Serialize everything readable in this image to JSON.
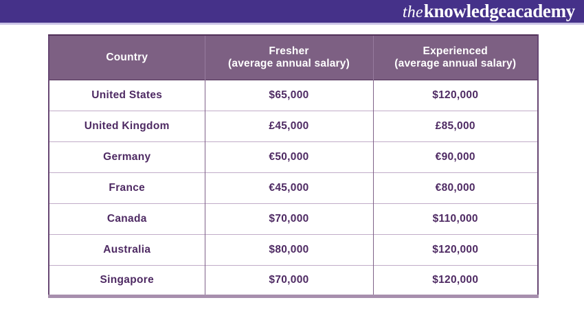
{
  "brand": {
    "logo_the": "the",
    "logo_rest": "knowledgeacademy",
    "bar_color": "#453189",
    "text_color": "#ffffff"
  },
  "colors": {
    "header_cell_bg": "#7d6083",
    "body_text": "#4e2a63",
    "row_divider": "#c0abc7",
    "column_divider": "#7e5f87",
    "bottom_border": "#a78fad"
  },
  "chart_data": {
    "type": "table",
    "title": "",
    "columns": [
      "Country",
      "Fresher\n(average annual salary)",
      "Experienced\n(average annual salary)"
    ],
    "rows": [
      [
        "United States",
        "$65,000",
        "$120,000"
      ],
      [
        "United Kingdom",
        "£45,000",
        "£85,000"
      ],
      [
        "Germany",
        "€50,000",
        "€90,000"
      ],
      [
        "France",
        "€45,000",
        "€80,000"
      ],
      [
        "Canada",
        "$70,000",
        "$110,000"
      ],
      [
        "Australia",
        "$80,000",
        "$120,000"
      ],
      [
        "Singapore",
        "$70,000",
        "$120,000"
      ]
    ]
  }
}
